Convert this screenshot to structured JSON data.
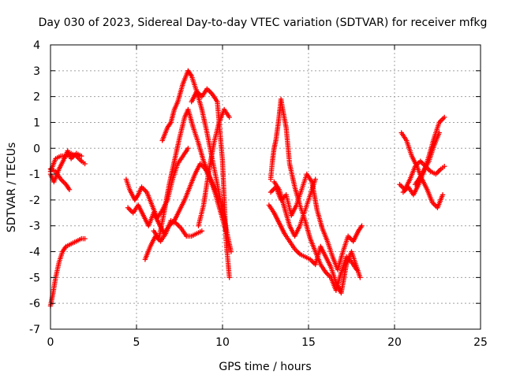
{
  "chart_data": {
    "type": "scatter",
    "title": "Day 030 of 2023, Sidereal Day-to-day VTEC variation (SDTVAR) for receiver mfkg",
    "xlabel": "GPS time / hours",
    "ylabel": "SDTVAR / TECUs",
    "xlim": [
      0,
      25
    ],
    "ylim": [
      -7,
      4
    ],
    "xticks": [
      0,
      5,
      10,
      15,
      20,
      25
    ],
    "yticks": [
      -7,
      -6,
      -5,
      -4,
      -3,
      -2,
      -1,
      0,
      1,
      2,
      3,
      4
    ],
    "grid": true,
    "marker": "+",
    "color": "#ff0000",
    "series": [
      {
        "x": [
          0.0,
          0.3,
          0.6,
          0.9,
          1.2,
          1.5,
          1.8,
          2.0
        ],
        "y": [
          -0.9,
          -0.4,
          -0.3,
          -0.3,
          -0.2,
          -0.3,
          -0.5,
          -0.6
        ]
      },
      {
        "x": [
          0.0,
          0.2,
          0.5,
          0.8,
          1.0,
          1.2,
          1.5,
          1.8
        ],
        "y": [
          -1.0,
          -1.3,
          -0.8,
          -0.4,
          -0.1,
          -0.4,
          -0.2,
          -0.3
        ]
      },
      {
        "x": [
          0.0,
          0.3,
          0.6,
          0.9,
          1.1
        ],
        "y": [
          -0.8,
          -0.9,
          -1.2,
          -1.4,
          -1.6
        ]
      },
      {
        "x": [
          0.0,
          0.15,
          0.3,
          0.5,
          0.7,
          0.9,
          1.2,
          1.5,
          1.8,
          2.0
        ],
        "y": [
          -6.1,
          -5.6,
          -5.0,
          -4.4,
          -4.0,
          -3.8,
          -3.7,
          -3.6,
          -3.5,
          -3.5
        ]
      },
      {
        "x": [
          4.4,
          4.6,
          4.9,
          5.1,
          5.3,
          5.6,
          5.9,
          6.2,
          6.5,
          6.8,
          7.1,
          7.4,
          7.7,
          8.0
        ],
        "y": [
          -1.2,
          -1.6,
          -2.0,
          -1.8,
          -1.5,
          -1.7,
          -2.2,
          -2.7,
          -2.4,
          -2.0,
          -1.2,
          -0.6,
          -0.3,
          0.0
        ]
      },
      {
        "x": [
          4.5,
          4.8,
          5.1,
          5.4,
          5.7,
          6.0,
          6.3,
          6.6,
          6.9,
          7.2,
          7.5,
          7.8,
          8.1,
          8.4,
          8.7,
          9.0,
          9.3,
          9.6,
          9.9,
          10.2
        ],
        "y": [
          -2.3,
          -2.5,
          -2.2,
          -2.6,
          -3.0,
          -2.5,
          -2.9,
          -3.3,
          -3.0,
          -2.8,
          -2.4,
          -2.0,
          -1.5,
          -1.0,
          -0.6,
          -0.8,
          -1.2,
          -1.8,
          -2.5,
          -3.2
        ]
      },
      {
        "x": [
          5.5,
          5.8,
          6.1,
          6.4,
          6.7,
          7.0,
          7.3,
          7.6,
          7.9,
          8.2,
          8.5,
          8.8
        ],
        "y": [
          -4.3,
          -3.8,
          -3.4,
          -3.6,
          -3.3,
          -2.8,
          -2.9,
          -3.1,
          -3.4,
          -3.4,
          -3.3,
          -3.2
        ]
      },
      {
        "x": [
          6.0,
          6.3,
          6.6,
          6.9,
          7.2,
          7.5,
          7.8,
          8.0,
          8.3,
          8.6,
          8.9,
          9.2,
          9.5,
          9.8
        ],
        "y": [
          -3.2,
          -3.5,
          -2.5,
          -1.4,
          -0.5,
          0.4,
          1.2,
          1.5,
          0.8,
          0.2,
          -0.5,
          -1.0,
          -1.5,
          -2.0
        ]
      },
      {
        "x": [
          6.5,
          6.8,
          7.0,
          7.2,
          7.4,
          7.7,
          8.0,
          8.2,
          8.5,
          8.8,
          9.1,
          9.4,
          9.7,
          10.0,
          10.3,
          10.5
        ],
        "y": [
          0.3,
          0.8,
          1.0,
          1.5,
          1.8,
          2.5,
          3.0,
          2.8,
          2.2,
          1.5,
          0.6,
          -0.4,
          -1.4,
          -2.4,
          -3.4,
          -4.0
        ]
      },
      {
        "x": [
          8.6,
          8.9,
          9.2,
          9.5,
          9.8,
          10.1,
          10.4
        ],
        "y": [
          -3.0,
          -2.2,
          -0.9,
          0.2,
          1.0,
          1.5,
          1.2
        ]
      },
      {
        "x": [
          8.2,
          8.5,
          8.8,
          9.1,
          9.4,
          9.7,
          10.0,
          10.2,
          10.4
        ],
        "y": [
          1.8,
          2.2,
          2.0,
          2.3,
          2.1,
          1.8,
          -0.5,
          -3.5,
          -5.0
        ]
      },
      {
        "x": [
          12.8,
          12.9,
          13.0,
          13.1,
          13.25,
          13.4,
          13.5,
          13.7,
          13.9,
          14.2,
          14.5,
          14.8,
          15.1,
          15.4,
          15.7,
          16.0,
          16.3,
          16.6,
          16.9,
          17.2,
          17.5,
          17.8
        ],
        "y": [
          -1.2,
          -0.5,
          0.0,
          0.3,
          1.0,
          1.9,
          1.5,
          0.8,
          -0.6,
          -1.5,
          -2.2,
          -2.8,
          -3.5,
          -4.0,
          -4.5,
          -4.8,
          -5.0,
          -5.5,
          -4.8,
          -4.2,
          -4.4,
          -4.7
        ]
      },
      {
        "x": [
          12.8,
          13.1,
          13.4,
          13.7,
          14.0,
          14.3,
          14.6,
          14.9,
          15.2,
          15.5,
          15.8,
          16.1,
          16.4,
          16.7,
          17.0,
          17.3,
          17.6,
          17.9,
          18.1
        ],
        "y": [
          -1.7,
          -1.5,
          -2.0,
          -1.8,
          -2.6,
          -2.2,
          -1.6,
          -1.0,
          -1.3,
          -2.4,
          -3.1,
          -3.6,
          -4.2,
          -4.7,
          -4.0,
          -3.4,
          -3.6,
          -3.2,
          -3.0
        ]
      },
      {
        "x": [
          12.7,
          13.0,
          13.3,
          13.6,
          13.9,
          14.2,
          14.5,
          14.8,
          15.1,
          15.4,
          15.7,
          16.0,
          16.3,
          16.6,
          16.9,
          17.2,
          17.5,
          17.8,
          18.0
        ],
        "y": [
          -2.2,
          -2.5,
          -2.9,
          -3.3,
          -3.6,
          -3.9,
          -4.1,
          -4.2,
          -4.3,
          -4.5,
          -3.8,
          -4.2,
          -4.6,
          -5.2,
          -5.6,
          -4.5,
          -4.0,
          -4.6,
          -5.0
        ]
      },
      {
        "x": [
          13.0,
          13.3,
          13.6,
          13.9,
          14.2,
          14.5,
          14.8,
          15.1,
          15.4
        ],
        "y": [
          -1.3,
          -1.6,
          -2.3,
          -3.0,
          -3.4,
          -3.0,
          -2.4,
          -1.8,
          -1.2
        ]
      },
      {
        "x": [
          20.3,
          20.6,
          20.9,
          21.2,
          21.5,
          21.8,
          22.1,
          22.4,
          22.7,
          22.9
        ],
        "y": [
          -1.4,
          -1.6,
          -1.2,
          -0.7,
          -0.5,
          -0.7,
          -0.9,
          -1.0,
          -0.8,
          -0.7
        ]
      },
      {
        "x": [
          20.4,
          20.7,
          21.0,
          21.3,
          21.6,
          21.9,
          22.2,
          22.5,
          22.8
        ],
        "y": [
          0.6,
          0.3,
          -0.3,
          -0.7,
          -1.2,
          -1.6,
          -2.1,
          -2.3,
          -1.8
        ]
      },
      {
        "x": [
          20.5,
          20.8,
          21.1,
          21.4,
          21.7,
          22.0,
          22.3,
          22.6,
          22.9
        ],
        "y": [
          -1.7,
          -1.5,
          -1.8,
          -1.4,
          -0.9,
          -0.3,
          0.4,
          1.0,
          1.2
        ]
      },
      {
        "x": [
          21.2,
          21.6,
          22.0,
          22.3,
          22.6
        ],
        "y": [
          -1.4,
          -1.0,
          -0.5,
          0.1,
          0.6
        ]
      }
    ]
  }
}
